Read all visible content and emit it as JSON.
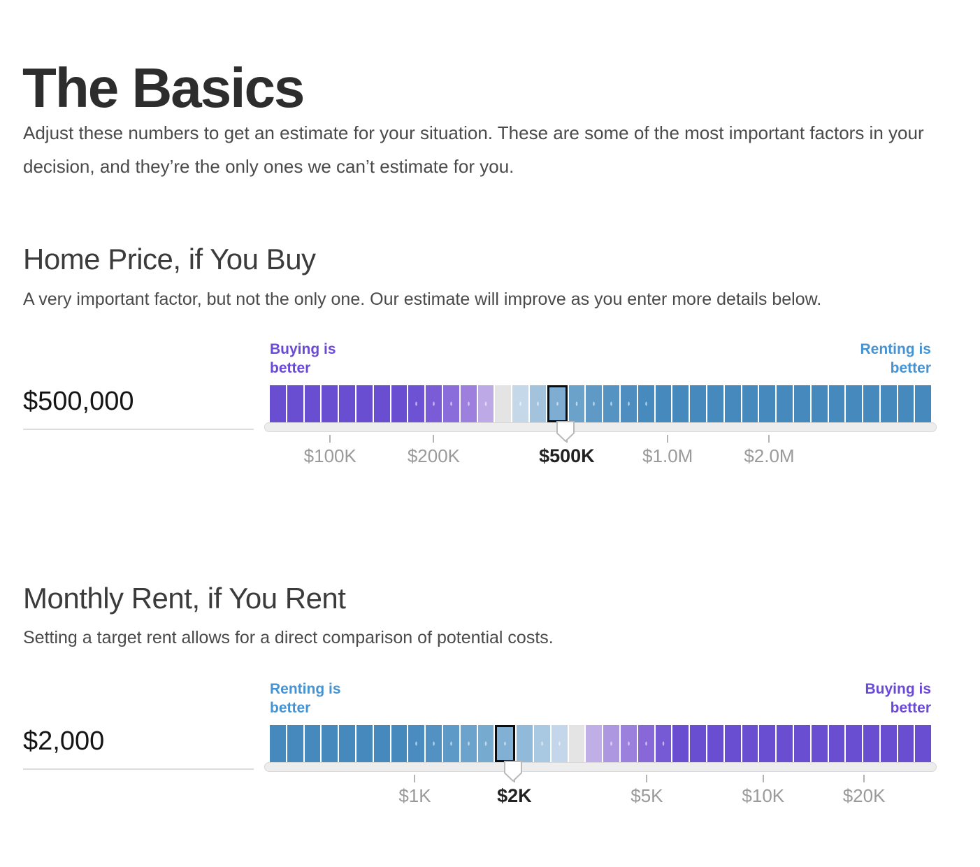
{
  "header": {
    "title": "The Basics",
    "intro": "Adjust these numbers to get an estimate for your situation. These are some of the most important factors in your decision, and they’re the only ones we can’t estimate for you."
  },
  "accent_colors": {
    "buying_purple": "#6B49D8",
    "renting_blue": "#4593D3",
    "solid_purple_segment": "#6A4ED2",
    "solid_blue_segment": "#4589BD",
    "neutral_segment": "#E4E4E4"
  },
  "sliders": [
    {
      "heading": "Home Price, if You Buy",
      "description": "A very important factor, but not the only one. Our estimate will improve as you enter more details below.",
      "value": "$500,000",
      "left_label": "Buying is better",
      "left_color": "#6B49D8",
      "right_label": "Renting is better",
      "right_color": "#4593D3",
      "selected_index": 16,
      "ticks": [
        {
          "label": "$100K",
          "pct": 9.8,
          "bold": false
        },
        {
          "label": "$200K",
          "pct": 25.2,
          "bold": false
        },
        {
          "label": "$500K",
          "pct": 45.0,
          "bold": true
        },
        {
          "label": "$1.0M",
          "pct": 60.0,
          "bold": false
        },
        {
          "label": "$2.0M",
          "pct": 75.1,
          "bold": false
        }
      ],
      "segments": [
        {
          "color": "#6A4ED2",
          "dotted": false
        },
        {
          "color": "#6A4ED2",
          "dotted": false
        },
        {
          "color": "#6A4ED2",
          "dotted": false
        },
        {
          "color": "#6A4ED2",
          "dotted": false
        },
        {
          "color": "#6A4ED2",
          "dotted": false
        },
        {
          "color": "#6A4ED2",
          "dotted": false
        },
        {
          "color": "#6A4ED2",
          "dotted": false
        },
        {
          "color": "#6A4ED2",
          "dotted": false
        },
        {
          "color": "#6E52D4",
          "dotted": true
        },
        {
          "color": "#7A5DD6",
          "dotted": true
        },
        {
          "color": "#8A6CDA",
          "dotted": true
        },
        {
          "color": "#9D80DE",
          "dotted": true
        },
        {
          "color": "#BCA9E6",
          "dotted": true
        },
        {
          "color": "#E4E4E4",
          "dotted": false
        },
        {
          "color": "#C5D8EA",
          "dotted": true
        },
        {
          "color": "#A3C3DD",
          "dotted": true
        },
        {
          "color": "#7FADD2",
          "dotted": true
        },
        {
          "color": "#6BA2CA",
          "dotted": true
        },
        {
          "color": "#5F9AC6",
          "dotted": true
        },
        {
          "color": "#5593C2",
          "dotted": true
        },
        {
          "color": "#4D8DBF",
          "dotted": true
        },
        {
          "color": "#478ABD",
          "dotted": true
        },
        {
          "color": "#4589BD",
          "dotted": false
        },
        {
          "color": "#4589BD",
          "dotted": false
        },
        {
          "color": "#4589BD",
          "dotted": false
        },
        {
          "color": "#4589BD",
          "dotted": false
        },
        {
          "color": "#4589BD",
          "dotted": false
        },
        {
          "color": "#4589BD",
          "dotted": false
        },
        {
          "color": "#4589BD",
          "dotted": false
        },
        {
          "color": "#4589BD",
          "dotted": false
        },
        {
          "color": "#4589BD",
          "dotted": false
        },
        {
          "color": "#4589BD",
          "dotted": false
        },
        {
          "color": "#4589BD",
          "dotted": false
        },
        {
          "color": "#4589BD",
          "dotted": false
        },
        {
          "color": "#4589BD",
          "dotted": false
        },
        {
          "color": "#4589BD",
          "dotted": false
        },
        {
          "color": "#4589BD",
          "dotted": false
        },
        {
          "color": "#4589BD",
          "dotted": false
        }
      ]
    },
    {
      "heading": "Monthly Rent, if You Rent",
      "description": "Setting a target rent allows for a direct comparison of potential costs.",
      "value": "$2,000",
      "left_label": "Renting is better",
      "left_color": "#4593D3",
      "right_label": "Buying is better",
      "right_color": "#6B49D8",
      "selected_index": 13,
      "ticks": [
        {
          "label": "$1K",
          "pct": 22.4,
          "bold": false
        },
        {
          "label": "$2K",
          "pct": 37.2,
          "bold": true
        },
        {
          "label": "$5K",
          "pct": 56.9,
          "bold": false
        },
        {
          "label": "$10K",
          "pct": 74.2,
          "bold": false
        },
        {
          "label": "$20K",
          "pct": 89.2,
          "bold": false
        }
      ],
      "segments": [
        {
          "color": "#4589BD",
          "dotted": false
        },
        {
          "color": "#4589BD",
          "dotted": false
        },
        {
          "color": "#4589BD",
          "dotted": false
        },
        {
          "color": "#4589BD",
          "dotted": false
        },
        {
          "color": "#4589BD",
          "dotted": false
        },
        {
          "color": "#4589BD",
          "dotted": false
        },
        {
          "color": "#4589BD",
          "dotted": false
        },
        {
          "color": "#4589BD",
          "dotted": false
        },
        {
          "color": "#4A8CBF",
          "dotted": true
        },
        {
          "color": "#5292C3",
          "dotted": true
        },
        {
          "color": "#5D9AC7",
          "dotted": true
        },
        {
          "color": "#6BA3CC",
          "dotted": true
        },
        {
          "color": "#77AACF",
          "dotted": true
        },
        {
          "color": "#82B0D4",
          "dotted": true
        },
        {
          "color": "#90B9DA",
          "dotted": false
        },
        {
          "color": "#A9C8E2",
          "dotted": true
        },
        {
          "color": "#C3D6EA",
          "dotted": true
        },
        {
          "color": "#E4E4E4",
          "dotted": false
        },
        {
          "color": "#C0AFE7",
          "dotted": false
        },
        {
          "color": "#AE97E1",
          "dotted": true
        },
        {
          "color": "#9C80DD",
          "dotted": true
        },
        {
          "color": "#8867D9",
          "dotted": true
        },
        {
          "color": "#7659D5",
          "dotted": true
        },
        {
          "color": "#6A4ED2",
          "dotted": false
        },
        {
          "color": "#6A4ED2",
          "dotted": false
        },
        {
          "color": "#6A4ED2",
          "dotted": false
        },
        {
          "color": "#6A4ED2",
          "dotted": false
        },
        {
          "color": "#6A4ED2",
          "dotted": false
        },
        {
          "color": "#6A4ED2",
          "dotted": false
        },
        {
          "color": "#6A4ED2",
          "dotted": false
        },
        {
          "color": "#6A4ED2",
          "dotted": false
        },
        {
          "color": "#6A4ED2",
          "dotted": false
        },
        {
          "color": "#6A4ED2",
          "dotted": false
        },
        {
          "color": "#6A4ED2",
          "dotted": false
        },
        {
          "color": "#6A4ED2",
          "dotted": false
        },
        {
          "color": "#6A4ED2",
          "dotted": false
        },
        {
          "color": "#6A4ED2",
          "dotted": false
        },
        {
          "color": "#6A4ED2",
          "dotted": false
        }
      ]
    }
  ]
}
